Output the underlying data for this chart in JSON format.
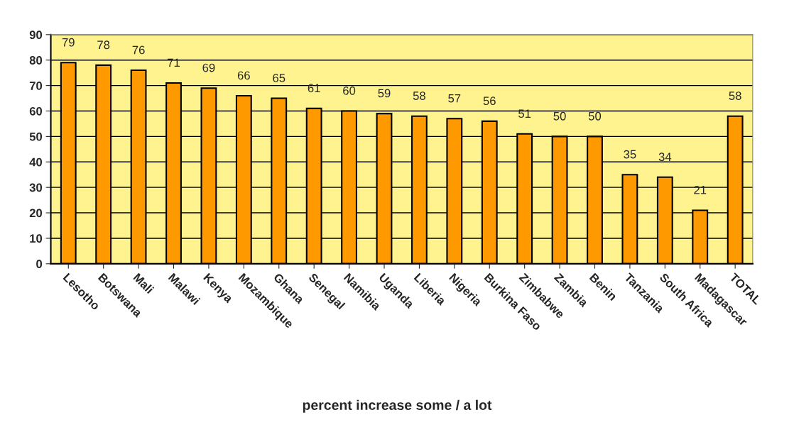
{
  "chart_data": {
    "type": "bar",
    "annotations": [
      "percent increase some / a lot"
    ],
    "categories": [
      "Lesotho",
      "Botswana",
      "Mali",
      "Malawi",
      "Kenya",
      "Mozambique",
      "Ghana",
      "Senegal",
      "Namibia",
      "Uganda",
      "Liberia",
      "Nigeria",
      "Burkina Faso",
      "Zimbabwe",
      "Zambia",
      "Benin",
      "Tanzania",
      "South Africa",
      "Madagascar",
      "TOTAL"
    ],
    "values": [
      79,
      78,
      76,
      71,
      69,
      66,
      65,
      61,
      60,
      59,
      58,
      57,
      56,
      51,
      50,
      50,
      35,
      34,
      21,
      58
    ],
    "color": "#ff9900",
    "ylim": [
      0,
      90
    ],
    "yticks": [
      0,
      10,
      20,
      30,
      40,
      50,
      60,
      70,
      80,
      90
    ],
    "grid": "y",
    "data_labels": true
  }
}
